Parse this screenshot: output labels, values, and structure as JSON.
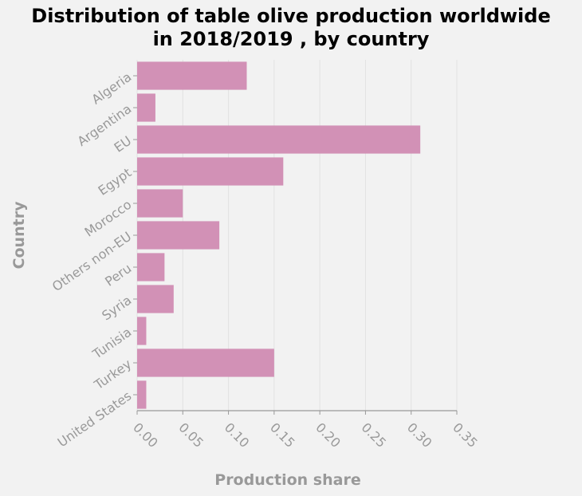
{
  "chart_data": {
    "type": "bar",
    "orientation": "horizontal",
    "title_line1": "Distribution of table olive production worldwide",
    "title_line2": "in 2018/2019 , by country",
    "xlabel": "Production share",
    "ylabel": "Country",
    "categories": [
      "Algeria",
      "Argentina",
      "EU",
      "Egypt",
      "Morocco",
      "Others non-EU",
      "Peru",
      "Syria",
      "Tunisia",
      "Turkey",
      "United States"
    ],
    "values": [
      0.12,
      0.02,
      0.31,
      0.16,
      0.05,
      0.09,
      0.03,
      0.04,
      0.01,
      0.15,
      0.01
    ],
    "xlim": [
      0,
      0.35
    ],
    "xticks": [
      "0.00",
      "0.05",
      "0.10",
      "0.15",
      "0.20",
      "0.25",
      "0.30",
      "0.35"
    ],
    "grid": true,
    "bar_color": "#d291b6"
  }
}
